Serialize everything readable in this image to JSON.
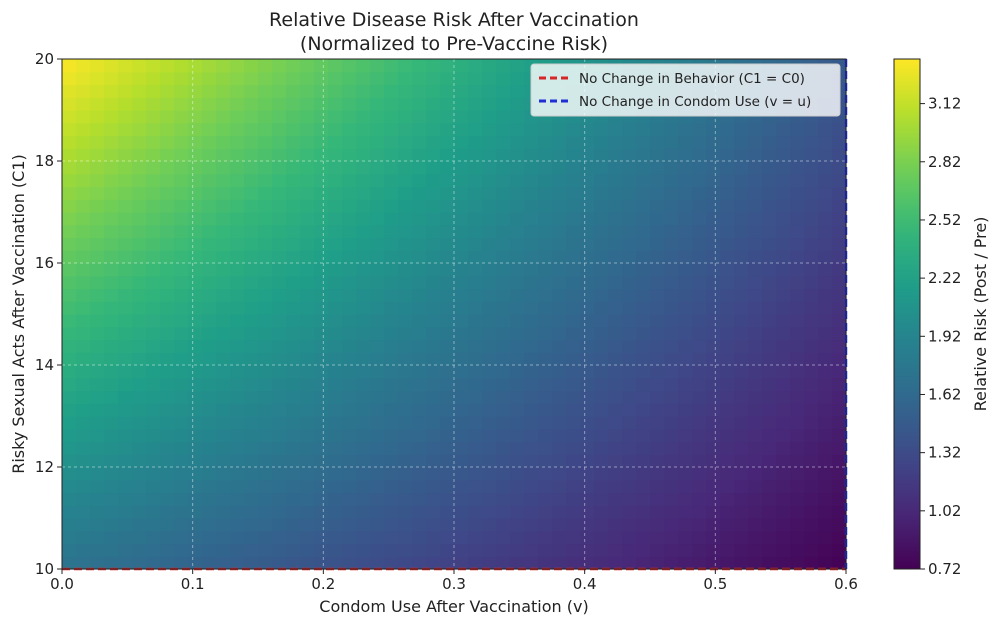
{
  "chart_data": {
    "type": "heatmap",
    "title": "Relative Disease Risk After Vaccination",
    "subtitle": "(Normalized to Pre-Vaccine Risk)",
    "xlabel": "Condom Use After Vaccination (v)",
    "ylabel": "Risky Sexual Acts After Vaccination (C1)",
    "xlim": [
      0.0,
      0.6
    ],
    "ylim": [
      10,
      20
    ],
    "x_ticks": [
      "0.0",
      "0.1",
      "0.2",
      "0.3",
      "0.4",
      "0.5",
      "0.6"
    ],
    "y_ticks": [
      "10",
      "12",
      "14",
      "16",
      "18",
      "20"
    ],
    "grid": true,
    "colormap": "viridis",
    "colorbar": {
      "label": "Relative Risk (Post / Pre)",
      "ticks": [
        "0.72",
        "1.02",
        "1.32",
        "1.62",
        "1.92",
        "2.22",
        "2.52",
        "2.82",
        "3.12"
      ],
      "range": [
        0.72,
        3.35
      ]
    },
    "surface_samples": [
      {
        "x": 0.0,
        "y": 10,
        "z": 1.72
      },
      {
        "x": 0.6,
        "y": 10,
        "z": 0.72
      },
      {
        "x": 0.0,
        "y": 20,
        "z": 3.35
      },
      {
        "x": 0.6,
        "y": 20,
        "z": 1.45
      }
    ],
    "series": [
      {
        "name": "No Change in Behavior (C1 = C0)",
        "color": "#d62728",
        "style": "dashed",
        "orientation": "horizontal",
        "value": 10
      },
      {
        "name": "No Change in Condom Use (v = u)",
        "color": "#1f2fd6",
        "style": "dashed",
        "orientation": "vertical",
        "value": 0.6
      }
    ],
    "legend_position": "top-right"
  }
}
